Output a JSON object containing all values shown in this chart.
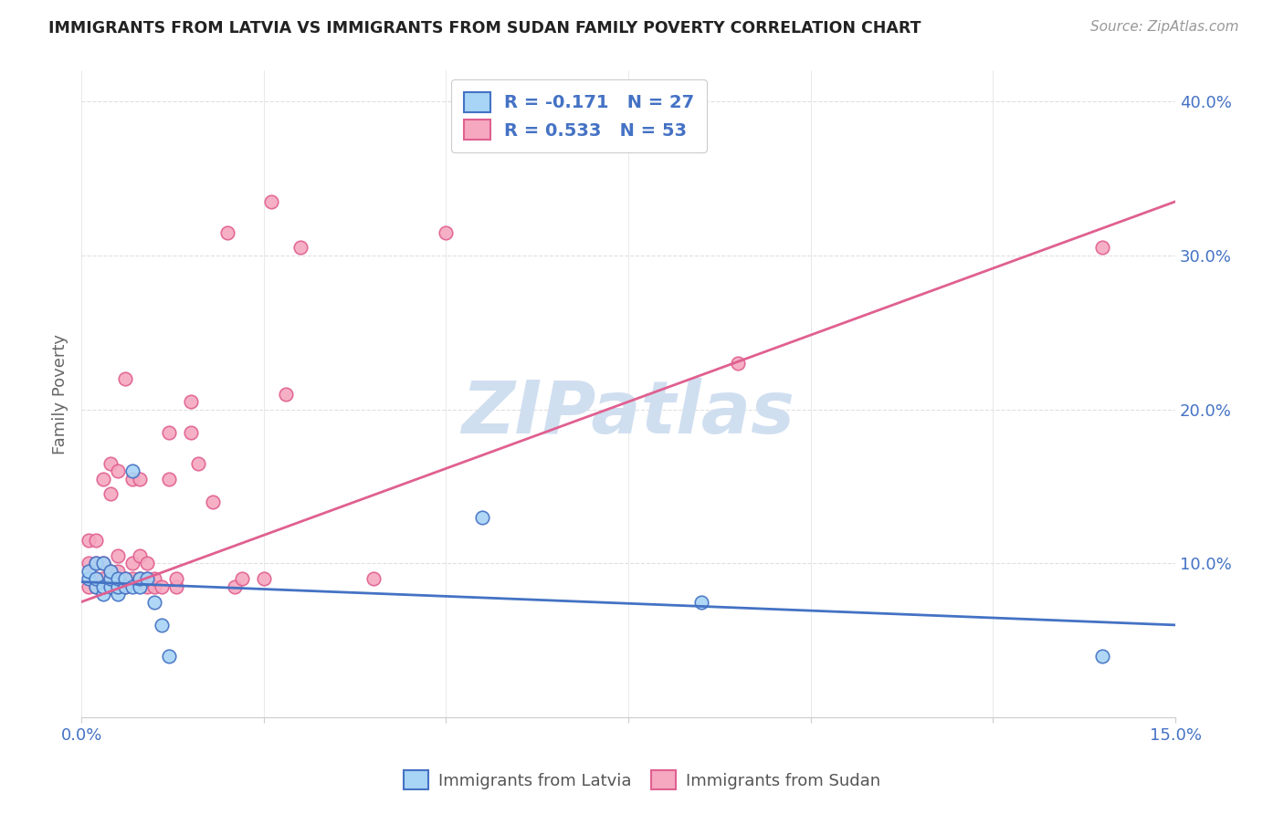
{
  "title": "IMMIGRANTS FROM LATVIA VS IMMIGRANTS FROM SUDAN FAMILY POVERTY CORRELATION CHART",
  "source": "Source: ZipAtlas.com",
  "ylabel": "Family Poverty",
  "xlim": [
    0.0,
    0.15
  ],
  "ylim": [
    0.0,
    0.42
  ],
  "xticks": [
    0.0,
    0.025,
    0.05,
    0.075,
    0.1,
    0.125,
    0.15
  ],
  "legend_r1": "R = -0.171   N = 27",
  "legend_r2": "R = 0.533   N = 53",
  "latvia_color": "#a8d4f5",
  "sudan_color": "#f5a8c0",
  "latvia_edge_color": "#4472C4",
  "sudan_edge_color": "#E06090",
  "latvia_line_color": "#4472C4",
  "sudan_line_color": "#E06090",
  "watermark": "ZIPatlas",
  "watermark_color": "#D0DFF0",
  "latvia_scatter_x": [
    0.001,
    0.001,
    0.002,
    0.002,
    0.002,
    0.003,
    0.003,
    0.003,
    0.004,
    0.004,
    0.004,
    0.005,
    0.005,
    0.005,
    0.006,
    0.006,
    0.007,
    0.007,
    0.008,
    0.008,
    0.009,
    0.01,
    0.011,
    0.012,
    0.055,
    0.085,
    0.14
  ],
  "latvia_scatter_y": [
    0.09,
    0.095,
    0.085,
    0.09,
    0.1,
    0.08,
    0.085,
    0.1,
    0.085,
    0.09,
    0.095,
    0.08,
    0.085,
    0.09,
    0.085,
    0.09,
    0.085,
    0.16,
    0.085,
    0.09,
    0.09,
    0.075,
    0.06,
    0.04,
    0.13,
    0.075,
    0.04
  ],
  "sudan_scatter_x": [
    0.001,
    0.001,
    0.001,
    0.002,
    0.002,
    0.002,
    0.002,
    0.003,
    0.003,
    0.003,
    0.003,
    0.004,
    0.004,
    0.004,
    0.004,
    0.005,
    0.005,
    0.005,
    0.005,
    0.006,
    0.006,
    0.006,
    0.007,
    0.007,
    0.007,
    0.008,
    0.008,
    0.008,
    0.009,
    0.009,
    0.009,
    0.01,
    0.01,
    0.011,
    0.012,
    0.012,
    0.013,
    0.013,
    0.015,
    0.015,
    0.016,
    0.018,
    0.02,
    0.021,
    0.022,
    0.025,
    0.026,
    0.028,
    0.03,
    0.04,
    0.05,
    0.09,
    0.14
  ],
  "sudan_scatter_y": [
    0.085,
    0.1,
    0.115,
    0.085,
    0.09,
    0.1,
    0.115,
    0.085,
    0.09,
    0.1,
    0.155,
    0.085,
    0.095,
    0.145,
    0.165,
    0.085,
    0.095,
    0.105,
    0.16,
    0.085,
    0.09,
    0.22,
    0.09,
    0.1,
    0.155,
    0.09,
    0.105,
    0.155,
    0.085,
    0.09,
    0.1,
    0.085,
    0.09,
    0.085,
    0.155,
    0.185,
    0.085,
    0.09,
    0.185,
    0.205,
    0.165,
    0.14,
    0.315,
    0.085,
    0.09,
    0.09,
    0.335,
    0.21,
    0.305,
    0.09,
    0.315,
    0.23,
    0.305
  ],
  "latvia_line_x0": 0.0,
  "latvia_line_y0": 0.088,
  "latvia_line_x1": 0.15,
  "latvia_line_y1": 0.06,
  "sudan_line_x0": 0.0,
  "sudan_line_y0": 0.075,
  "sudan_line_x1": 0.15,
  "sudan_line_y1": 0.335,
  "grid_color": "#E0E0E0",
  "right_tick_color": "#4472C4",
  "x_tick_color": "#4472C4",
  "title_color": "#222222",
  "source_color": "#999999",
  "ylabel_color": "#666666"
}
